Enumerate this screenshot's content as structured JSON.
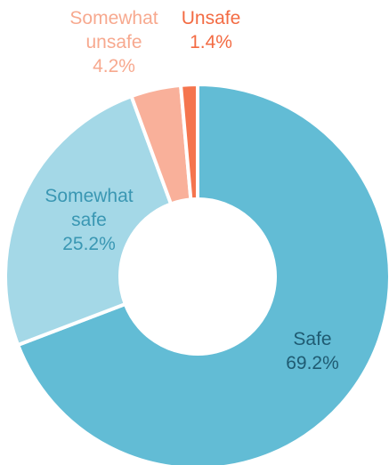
{
  "chart_data": {
    "type": "donut",
    "title": "",
    "slices": [
      {
        "label_lines": [
          "Safe"
        ],
        "value_label": "69.2%",
        "value": 69.2,
        "color": "#62bcd5",
        "text_color": "#1f5b72"
      },
      {
        "label_lines": [
          "Somewhat",
          "safe"
        ],
        "value_label": "25.2%",
        "value": 25.2,
        "color": "#a4d8e7",
        "text_color": "#3a97b3"
      },
      {
        "label_lines": [
          "Somewhat",
          "unsafe"
        ],
        "value_label": "4.2%",
        "value": 4.2,
        "color": "#f9b09a",
        "text_color": "#f7a98f"
      },
      {
        "label_lines": [
          "Unsafe"
        ],
        "value_label": "1.4%",
        "value": 1.4,
        "color": "#f5754e",
        "text_color": "#f36b43"
      }
    ]
  }
}
